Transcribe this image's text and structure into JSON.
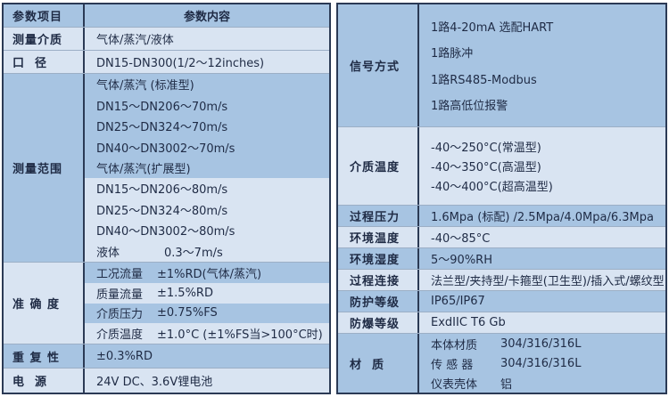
{
  "colors": {
    "table_border": "#2b3a55",
    "row_medium": "#a7c4e2",
    "row_light": "#d9e4f2",
    "separator": "#9cafc6",
    "text": "#1f2b45",
    "background": "#ffffff"
  },
  "left_table": {
    "header": {
      "param": "参数项目",
      "content": "参数内容"
    },
    "medium_row": {
      "label": "测量介质",
      "value": "气体/蒸汽/液体"
    },
    "diameter_row": {
      "label": "口  径",
      "value": "DN15-DN300(1/2～12inches)"
    },
    "range_section": {
      "label": "测量范围",
      "lines": [
        {
          "name": "气体/蒸汽 (标准型)",
          "value": ""
        },
        {
          "name": "DN15～DN20",
          "value": "6～70m/s"
        },
        {
          "name": "DN25～DN32",
          "value": "4～70m/s"
        },
        {
          "name": "DN40～DN300",
          "value": "2～70m/s"
        },
        {
          "name": "气体/蒸汽(扩展型)",
          "value": ""
        },
        {
          "name": "DN15～DN20",
          "value": "6～80m/s"
        },
        {
          "name": "DN25～DN32",
          "value": "4～80m/s"
        },
        {
          "name": "DN40～DN300",
          "value": "2～80m/s"
        },
        {
          "name": "液体",
          "value": "0.3～7m/s"
        }
      ]
    },
    "accuracy_section": {
      "label": "准 确 度",
      "lines": [
        {
          "name": "工况流量",
          "value": "±1%RD(气体/蒸汽)"
        },
        {
          "name": "质量流量",
          "value": "±1.5%RD"
        },
        {
          "name": "介质压力",
          "value": "±0.75%FS"
        },
        {
          "name": "介质温度",
          "value": "±1.0°C (±1%FS当>100°C时)"
        }
      ]
    },
    "repeatability_row": {
      "label": "重 复 性",
      "value": "±0.3%RD"
    },
    "power_row": {
      "label": "电  源",
      "value": "24V DC、3.6V锂电池"
    }
  },
  "right_table": {
    "signal_section": {
      "label": "信号方式",
      "lines": [
        "1路4-20mA 选配HART",
        "1路脉冲",
        "1路RS485-Modbus",
        "1路高低位报警"
      ]
    },
    "medium_temp_section": {
      "label": "介质温度",
      "lines": [
        "-40～250°C(常温型)",
        "-40～350°C(高温型)",
        "-40～400°C(超高温型)"
      ]
    },
    "simple_rows": [
      {
        "label": "过程压力",
        "value": "1.6Mpa (标配) /2.5Mpa/4.0Mpa/6.3Mpa"
      },
      {
        "label": "环境温度",
        "value": "-40～85°C"
      },
      {
        "label": "环境湿度",
        "value": "5～90%RH"
      },
      {
        "label": "过程连接",
        "value": "法兰型/夹持型/卡箍型(卫生型)/插入式/螺纹型"
      },
      {
        "label": "防护等级",
        "value": "IP65/IP67"
      },
      {
        "label": "防爆等级",
        "value": "ExdIIC T6 Gb"
      }
    ],
    "material_section": {
      "label": "材  质",
      "lines": [
        {
          "name": "本体材质",
          "value": "304/316/316L"
        },
        {
          "name": "传 感 器",
          "value": "304/316/316L"
        },
        {
          "name": "仪表壳体",
          "value": "铝"
        }
      ]
    }
  }
}
